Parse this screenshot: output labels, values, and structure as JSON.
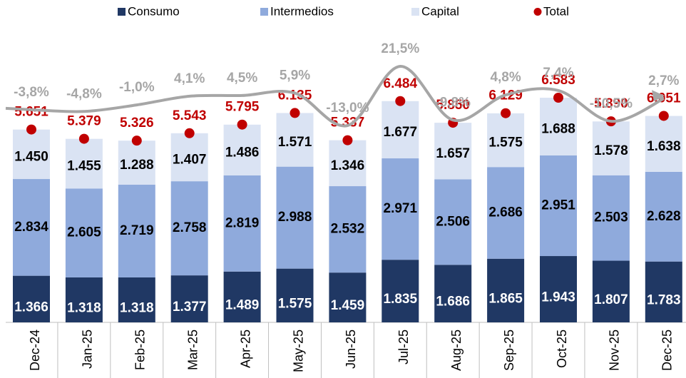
{
  "chart_data": {
    "type": "bar",
    "categories": [
      "Dec-24",
      "Jan-25",
      "Feb-25",
      "Mar-25",
      "Apr-25",
      "May-25",
      "Jun-25",
      "Jul-25",
      "Aug-25",
      "Sep-25",
      "Oct-25",
      "Nov-25",
      "Dec-25"
    ],
    "series": [
      {
        "name": "Consumo",
        "color": "#203864",
        "values": [
          1366,
          1318,
          1318,
          1377,
          1489,
          1575,
          1459,
          1835,
          1686,
          1865,
          1943,
          1807,
          1783
        ],
        "value_labels": [
          "1.366",
          "1.318",
          "1.318",
          "1.377",
          "1.489",
          "1.575",
          "1.459",
          "1.835",
          "1.686",
          "1.865",
          "1.943",
          "1.807",
          "1.783"
        ]
      },
      {
        "name": "Intermedios",
        "color": "#8faadc",
        "values": [
          2834,
          2605,
          2719,
          2758,
          2819,
          2988,
          2532,
          2971,
          2506,
          2686,
          2951,
          2503,
          2628
        ],
        "value_labels": [
          "2.834",
          "2.605",
          "2.719",
          "2.758",
          "2.819",
          "2.988",
          "2.532",
          "2.971",
          "2.506",
          "2.686",
          "2.951",
          "2.503",
          "2.628"
        ]
      },
      {
        "name": "Capital",
        "color": "#dae3f3",
        "values": [
          1450,
          1455,
          1288,
          1407,
          1486,
          1571,
          1346,
          1677,
          1657,
          1575,
          1688,
          1578,
          1638
        ],
        "value_labels": [
          "1.450",
          "1.455",
          "1.288",
          "1.407",
          "1.486",
          "1.571",
          "1.346",
          "1.677",
          "1.657",
          "1.575",
          "1.688",
          "1.578",
          "1.638"
        ]
      }
    ],
    "total": {
      "name": "Total",
      "color": "#c00000",
      "values": [
        5651,
        5379,
        5326,
        5543,
        5795,
        6135,
        5337,
        6484,
        5850,
        6129,
        6583,
        5890,
        6051
      ],
      "value_labels": [
        "5.651",
        "5.379",
        "5.326",
        "5.543",
        "5.795",
        "6.135",
        "5.337",
        "6.484",
        "5.850",
        "6.129",
        "6.583",
        "5.890",
        "6.051"
      ]
    },
    "growth": {
      "color": "#a6a6a6",
      "values": [
        -3.8,
        -4.8,
        -1.0,
        4.1,
        4.5,
        5.9,
        -13.0,
        21.5,
        -9.8,
        4.8,
        7.4,
        -10.5,
        2.7
      ],
      "value_labels": [
        "-3,8%",
        "-4,8%",
        "-1,0%",
        "4,1%",
        "4,5%",
        "5,9%",
        "-13,0%",
        "21,5%",
        "-9,8%",
        "4,8%",
        "7,4%",
        "-10,5%",
        "2,7%"
      ]
    }
  }
}
